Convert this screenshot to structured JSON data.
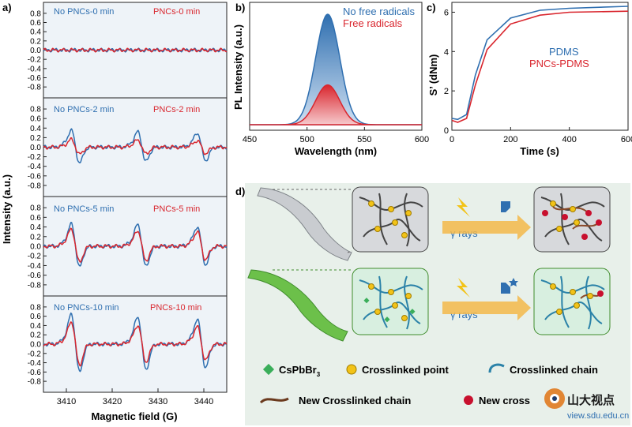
{
  "colors": {
    "blue": "#2f6fb0",
    "red": "#d9262e",
    "legend_bg": "#fff"
  },
  "panel_a": {
    "label": "a)",
    "ylabel": "Intensity (a.u.)",
    "xlabel": "Magnetic field (G)",
    "x_ticks": [
      "3410",
      "3420",
      "3430",
      "3440"
    ],
    "y_ticks": [
      "0.8",
      "0.6",
      "0.4",
      "0.2",
      "0.0",
      "-0.2",
      "-0.4",
      "-0.6",
      "-0.8"
    ],
    "subplots": [
      {
        "legend_blue": "No PNCs-0 min",
        "legend_red": "PNCs-0 min"
      },
      {
        "legend_blue": "No PNCs-2 min",
        "legend_red": "PNCs-2 min"
      },
      {
        "legend_blue": "No PNCs-5 min",
        "legend_red": "PNCs-5 min"
      },
      {
        "legend_blue": "No PNCs-10 min",
        "legend_red": "PNCs-10 min"
      }
    ]
  },
  "panel_b": {
    "label": "b)",
    "ylabel": "PL Intensity (a.u.)",
    "xlabel": "Wavelength (nm)",
    "x_ticks": [
      "450",
      "500",
      "550",
      "600"
    ],
    "legend_blue": "No free radicals",
    "legend_red": "Free radicals"
  },
  "panel_c": {
    "label": "c)",
    "ylabel": "S’ (dNm)",
    "xlabel": "Time (s)",
    "x_ticks": [
      "0",
      "200",
      "400",
      "600"
    ],
    "y_ticks": [
      "0",
      "2",
      "4",
      "6"
    ],
    "legend_blue": "PDMS",
    "legend_red": "PNCs-PDMS"
  },
  "panel_d": {
    "label": "d)",
    "gamma_top": "γ rays",
    "gamma_bottom": "γ rays",
    "legend": {
      "cspbbr3": "CsPbBr",
      "cspbbr3_sub": "3",
      "crosslinked_point": "Crosslinked point",
      "crosslinked_chain": "Crosslinked chain",
      "new_crosslinked_chain": "New Crosslinked chain",
      "new_crosslinked_point": "New cross"
    },
    "watermark_cn": "山大视点",
    "watermark_url": "view.sdu.edu.cn"
  },
  "chart_data": [
    {
      "type": "line",
      "title": "",
      "panel": "a",
      "xlabel": "Magnetic field (G)",
      "ylabel": "Intensity (a.u.)",
      "xlim": [
        3405,
        3445
      ],
      "ylim": [
        -0.9,
        0.9
      ],
      "subplots": [
        {
          "legend": [
            "No PNCs-0 min",
            "PNCs-0 min"
          ],
          "blue_amp": [
            0.0,
            0.0,
            0.0
          ],
          "red_amp": [
            0.0,
            0.0,
            0.0
          ]
        },
        {
          "legend": [
            "No PNCs-2 min",
            "PNCs-2 min"
          ],
          "blue_amp": [
            0.33,
            0.3,
            0.28
          ],
          "red_amp": [
            0.15,
            0.14,
            0.13
          ]
        },
        {
          "legend": [
            "No PNCs-5 min",
            "PNCs-5 min"
          ],
          "blue_amp": [
            0.43,
            0.42,
            0.38
          ],
          "red_amp": [
            0.33,
            0.3,
            0.28
          ]
        },
        {
          "legend": [
            "No PNCs-10 min",
            "PNCs-10 min"
          ],
          "blue_amp": [
            0.6,
            0.55,
            0.5
          ],
          "red_amp": [
            0.45,
            0.38,
            0.35
          ]
        }
      ],
      "line_positions": [
        3412,
        3426.5,
        3439.5
      ]
    },
    {
      "type": "area",
      "panel": "b",
      "xlabel": "Wavelength (nm)",
      "ylabel": "PL Intensity (a.u.)",
      "xlim": [
        450,
        600
      ],
      "series": [
        {
          "name": "No free radicals",
          "peak_nm": 518,
          "peak_rel": 1.0
        },
        {
          "name": "Free radicals",
          "peak_nm": 518,
          "peak_rel": 0.36
        }
      ]
    },
    {
      "type": "line",
      "panel": "c",
      "xlabel": "Time (s)",
      "ylabel": "S’ (dNm)",
      "xlim": [
        0,
        600
      ],
      "ylim": [
        0,
        6.5
      ],
      "series": [
        {
          "name": "PDMS",
          "x": [
            0,
            20,
            50,
            80,
            120,
            200,
            300,
            400,
            600
          ],
          "y": [
            0.6,
            0.55,
            0.8,
            2.8,
            4.6,
            5.7,
            6.1,
            6.2,
            6.3
          ]
        },
        {
          "name": "PNCs-PDMS",
          "x": [
            0,
            20,
            50,
            80,
            120,
            200,
            300,
            400,
            600
          ],
          "y": [
            0.5,
            0.4,
            0.6,
            2.3,
            4.1,
            5.4,
            5.85,
            6.0,
            6.05
          ]
        }
      ]
    }
  ]
}
